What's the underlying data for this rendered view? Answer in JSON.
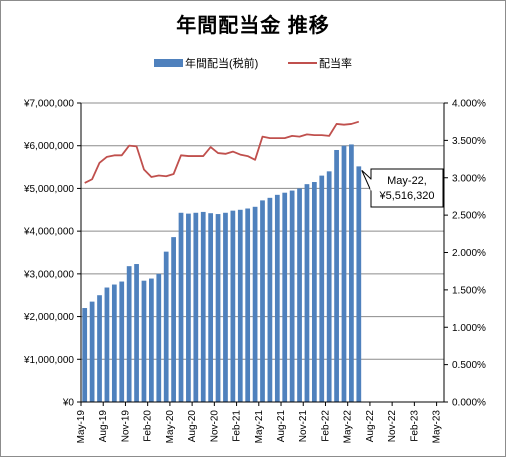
{
  "chart_data": {
    "type": "bar+line",
    "title": "年間配当金 推移",
    "legend": {
      "placement": "top",
      "bar_series_name": "年間配当(税前)",
      "line_series_name": "配当率"
    },
    "colors": {
      "bar": "#4f81bd",
      "line": "#c0504d",
      "grid": "#8c8c8c"
    },
    "y_left": {
      "min": 0,
      "max": 7000000,
      "ticks": [
        "¥0",
        "¥1,000,000",
        "¥2,000,000",
        "¥3,000,000",
        "¥4,000,000",
        "¥5,000,000",
        "¥6,000,000",
        "¥7,000,000"
      ]
    },
    "y_right": {
      "min": 0,
      "max": 4,
      "ticks": [
        "0.000%",
        "0.500%",
        "1.000%",
        "1.500%",
        "2.000%",
        "2.500%",
        "3.000%",
        "3.500%",
        "4.000%"
      ]
    },
    "x_axis": {
      "tick_labels": [
        "May-19",
        "Aug-19",
        "Nov-19",
        "Feb-20",
        "May-20",
        "Aug-20",
        "Nov-20",
        "Feb-21",
        "May-21",
        "Aug-21",
        "Nov-21",
        "Feb-22",
        "May-22",
        "Aug-22",
        "Nov-22",
        "Feb-23",
        "May-23"
      ],
      "total_months": 49
    },
    "grid": true,
    "series": [
      {
        "name": "年間配当(税前)",
        "kind": "bar",
        "values": [
          2200000,
          2350000,
          2500000,
          2680000,
          2750000,
          2820000,
          3180000,
          3230000,
          2840000,
          2890000,
          3000000,
          3520000,
          3860000,
          4430000,
          4410000,
          4430000,
          4450000,
          4420000,
          4400000,
          4430000,
          4480000,
          4500000,
          4530000,
          4570000,
          4720000,
          4780000,
          4850000,
          4900000,
          4950000,
          5000000,
          5100000,
          5150000,
          5300000,
          5400000,
          5900000,
          6000000,
          6030000,
          5516320
        ]
      },
      {
        "name": "配当率",
        "kind": "line",
        "values": [
          2.93,
          2.98,
          3.2,
          3.28,
          3.3,
          3.3,
          3.43,
          3.42,
          3.11,
          3.01,
          3.03,
          3.02,
          3.05,
          3.3,
          3.29,
          3.29,
          3.29,
          3.41,
          3.33,
          3.32,
          3.35,
          3.31,
          3.29,
          3.24,
          3.55,
          3.53,
          3.53,
          3.53,
          3.56,
          3.55,
          3.58,
          3.57,
          3.57,
          3.56,
          3.72,
          3.71,
          3.72,
          3.75
        ]
      }
    ],
    "annotations": [
      {
        "label_line1": "May-22,",
        "label_line2": "¥5,516,320",
        "point_index": 37
      }
    ]
  }
}
